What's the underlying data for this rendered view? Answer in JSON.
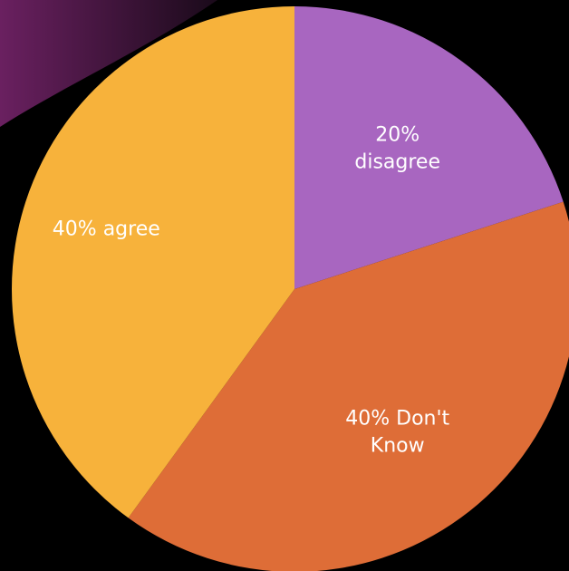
{
  "colors": {
    "background": "#000000",
    "corner_decoration": "#5a1c52"
  },
  "chart_data": {
    "type": "pie",
    "title": "",
    "slices": [
      {
        "label_lines": [
          "20%",
          "disagree"
        ],
        "value": 20,
        "color": "#a866c0"
      },
      {
        "label_lines": [
          "40% Don't",
          "Know"
        ],
        "value": 40,
        "color": "#de6d37"
      },
      {
        "label_lines": [
          "40% agree"
        ],
        "value": 40,
        "color": "#f7b23b"
      }
    ]
  }
}
